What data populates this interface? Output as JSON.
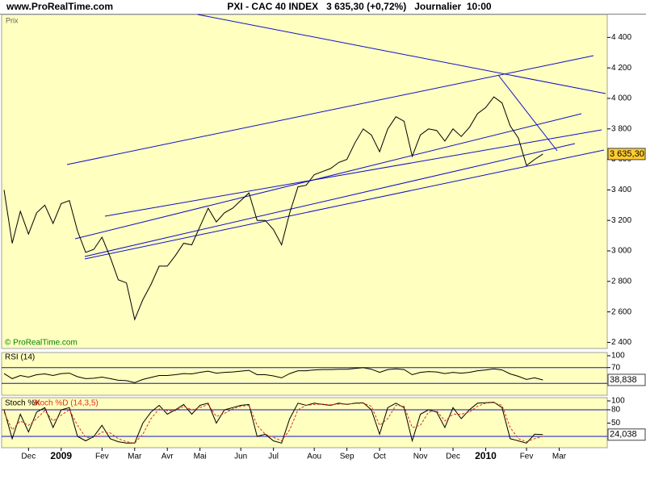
{
  "chart_data": [
    {
      "type": "line",
      "title": "PXI - CAC 40 INDEX   3 635,30 (+0,72%)   Journalier  10:00",
      "source": "www.ProRealTime.com",
      "watermark": "© ProRealTime.com",
      "ylabel": "Prix",
      "color": "#000000",
      "categories": [
        null,
        null,
        null,
        "Dec",
        null,
        null,
        null,
        "2009",
        null,
        null,
        null,
        null,
        "Fev",
        null,
        null,
        null,
        "Mar",
        null,
        null,
        null,
        "Avr",
        null,
        null,
        null,
        "Mai",
        null,
        null,
        null,
        null,
        "Jun",
        null,
        null,
        null,
        "Jul",
        null,
        null,
        null,
        null,
        "Aou",
        null,
        null,
        null,
        "Sep",
        null,
        null,
        null,
        "Oct",
        null,
        null,
        null,
        null,
        "Nov",
        null,
        null,
        null,
        "Dec",
        null,
        null,
        null,
        "2010",
        null,
        null,
        null,
        null,
        "Fev",
        null,
        null,
        null,
        "Mar"
      ],
      "values": [
        3400,
        3050,
        3260,
        3110,
        3250,
        3300,
        3180,
        3310,
        3330,
        3130,
        2990,
        3010,
        3090,
        2960,
        2810,
        2790,
        2550,
        2680,
        2780,
        2900,
        2900,
        2970,
        3050,
        3040,
        3160,
        3280,
        3190,
        3250,
        3280,
        3330,
        3380,
        3200,
        3200,
        3140,
        3040,
        3250,
        3420,
        3430,
        3500,
        3520,
        3540,
        3580,
        3600,
        3710,
        3800,
        3760,
        3650,
        3800,
        3880,
        3850,
        3620,
        3760,
        3800,
        3790,
        3720,
        3800,
        3750,
        3810,
        3900,
        3940,
        4010,
        3970,
        3820,
        3740,
        3560,
        3600,
        3635.3,
        null,
        null
      ],
      "value_labels": [
        null,
        null,
        null,
        null,
        null,
        null,
        null,
        null,
        null,
        null,
        null,
        null,
        null,
        null,
        null,
        null,
        null,
        null,
        null,
        null,
        null,
        null,
        null,
        null,
        null,
        null,
        null,
        null,
        null,
        null,
        null,
        null,
        null,
        null,
        null,
        null,
        null,
        null,
        null,
        null,
        null,
        null,
        null,
        null,
        null,
        null,
        null,
        null,
        null,
        null,
        null,
        null,
        null,
        null,
        null,
        null,
        null,
        null,
        null,
        null,
        null,
        null,
        null,
        null,
        null,
        null,
        "3 635,30",
        null,
        null
      ],
      "ylim": [
        2360,
        4550
      ],
      "yticks": [
        {
          "value": 2400,
          "label": "2 400"
        },
        {
          "value": 2600,
          "label": "2 600"
        },
        {
          "value": 2800,
          "label": "2 800"
        },
        {
          "value": 3000,
          "label": "3 000"
        },
        {
          "value": 3200,
          "label": "3 200"
        },
        {
          "value": 3400,
          "label": "3 400"
        },
        {
          "value": 3600,
          "label": "3 600"
        },
        {
          "value": 3800,
          "label": "3 800"
        },
        {
          "value": 4000,
          "label": "4 000"
        },
        {
          "value": 4200,
          "label": "4 200"
        },
        {
          "value": 4400,
          "label": "4 400"
        }
      ]
    },
    {
      "type": "line",
      "title": "RSI (14)",
      "color": "#000000",
      "values": [
        55,
        42,
        50,
        46,
        52,
        54,
        50,
        55,
        56,
        47,
        42,
        43,
        46,
        42,
        38,
        37,
        32,
        40,
        45,
        50,
        50,
        52,
        55,
        54,
        58,
        61,
        56,
        58,
        59,
        61,
        63,
        52,
        52,
        49,
        44,
        55,
        62,
        62,
        64,
        65,
        65,
        66,
        66,
        68,
        70,
        66,
        58,
        65,
        67,
        65,
        52,
        58,
        60,
        59,
        55,
        58,
        56,
        58,
        62,
        64,
        67,
        64,
        54,
        48,
        40,
        44,
        38.838,
        null,
        null
      ],
      "value_labels": [
        null,
        null,
        null,
        null,
        null,
        null,
        null,
        null,
        null,
        null,
        null,
        null,
        null,
        null,
        null,
        null,
        null,
        null,
        null,
        null,
        null,
        null,
        null,
        null,
        null,
        null,
        null,
        null,
        null,
        null,
        null,
        null,
        null,
        null,
        null,
        null,
        null,
        null,
        null,
        null,
        null,
        null,
        null,
        null,
        null,
        null,
        null,
        null,
        null,
        null,
        null,
        null,
        null,
        null,
        null,
        null,
        null,
        null,
        null,
        null,
        null,
        null,
        null,
        null,
        null,
        null,
        "38,838",
        null,
        null
      ],
      "ylim": [
        0,
        100
      ],
      "yticks": [
        70,
        100
      ],
      "hlines": [
        30,
        70
      ]
    },
    {
      "type": "line",
      "series": [
        {
          "name": "Stoch %K",
          "color": "#000000",
          "values": [
            80,
            15,
            70,
            30,
            75,
            85,
            40,
            80,
            85,
            20,
            10,
            20,
            45,
            15,
            8,
            5,
            5,
            50,
            75,
            90,
            70,
            80,
            92,
            70,
            90,
            95,
            50,
            80,
            85,
            90,
            92,
            20,
            25,
            10,
            5,
            60,
            95,
            90,
            95,
            92,
            90,
            95,
            92,
            95,
            96,
            80,
            25,
            85,
            95,
            85,
            10,
            70,
            80,
            75,
            40,
            85,
            60,
            80,
            95,
            96,
            97,
            85,
            15,
            10,
            5,
            25,
            24.038,
            null,
            null
          ],
          "value_labels": [
            null,
            null,
            null,
            null,
            null,
            null,
            null,
            null,
            null,
            null,
            null,
            null,
            null,
            null,
            null,
            null,
            null,
            null,
            null,
            null,
            null,
            null,
            null,
            null,
            null,
            null,
            null,
            null,
            null,
            null,
            null,
            null,
            null,
            null,
            null,
            null,
            null,
            null,
            null,
            null,
            null,
            null,
            null,
            null,
            null,
            null,
            null,
            null,
            null,
            null,
            null,
            null,
            null,
            null,
            null,
            null,
            null,
            null,
            null,
            null,
            null,
            null,
            null,
            null,
            null,
            null,
            "24,038",
            null,
            null
          ]
        },
        {
          "name": "Stoch %D (14,3,5)",
          "color": "#e03020",
          "dashed": true,
          "values": [
            75,
            35,
            55,
            45,
            60,
            78,
            55,
            68,
            80,
            45,
            18,
            17,
            30,
            28,
            15,
            8,
            5,
            25,
            60,
            82,
            78,
            78,
            88,
            80,
            85,
            92,
            65,
            72,
            82,
            88,
            90,
            45,
            25,
            18,
            10,
            35,
            80,
            90,
            92,
            93,
            91,
            93,
            93,
            94,
            95,
            88,
            45,
            60,
            90,
            88,
            40,
            45,
            75,
            78,
            55,
            70,
            70,
            75,
            88,
            95,
            96,
            90,
            40,
            15,
            8,
            15,
            20,
            null,
            null
          ]
        }
      ],
      "ylim": [
        0,
        100
      ],
      "yticks": [
        50,
        80,
        100
      ],
      "hlines": [
        20,
        80
      ]
    }
  ]
}
